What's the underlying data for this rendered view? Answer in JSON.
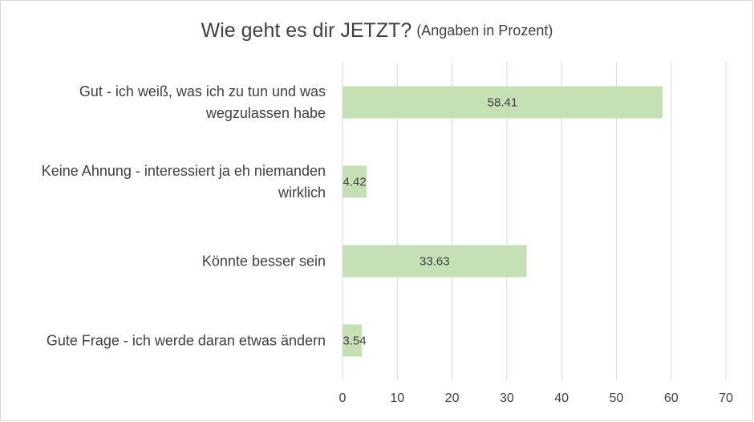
{
  "chart_data": {
    "type": "bar",
    "orientation": "horizontal",
    "title": "Wie geht es dir JETZT?",
    "subtitle": "(Angaben in Prozent)",
    "categories": [
      "Gut - ich weiß, was ich zu tun und was wegzulassen habe",
      "Keine Ahnung - interessiert ja eh niemanden wirklich",
      "Könnte besser sein",
      "Gute Frage - ich werde daran etwas ändern"
    ],
    "values": [
      58.41,
      4.42,
      33.63,
      3.54
    ],
    "color": "#c5e0b4",
    "xlim": [
      0,
      70
    ],
    "xticks": [
      0,
      10,
      20,
      30,
      40,
      50,
      60,
      70
    ],
    "grid": true
  }
}
